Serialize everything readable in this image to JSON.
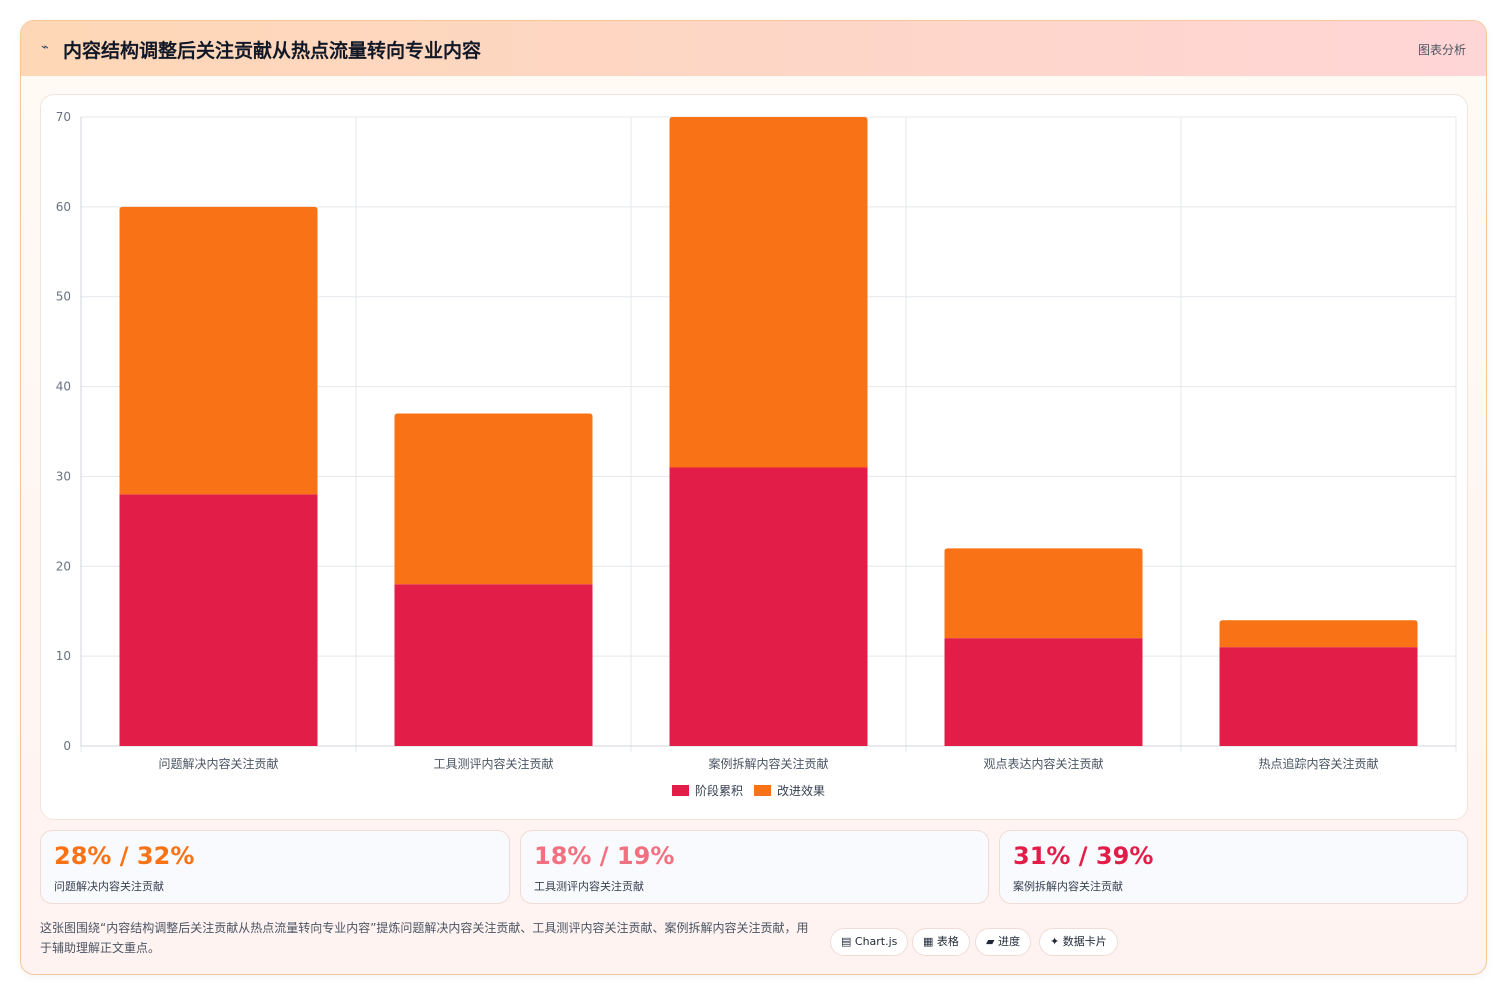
{
  "header": {
    "icon": "trend-icon",
    "title": "内容结构调整后关注贡献从热点流量转向专业内容",
    "action_label": "图表分析"
  },
  "chart_data": {
    "type": "bar",
    "stacked": true,
    "categories": [
      "问题解决内容关注贡献",
      "工具测评内容关注贡献",
      "案例拆解内容关注贡献",
      "观点表达内容关注贡献",
      "热点追踪内容关注贡献"
    ],
    "series": [
      {
        "name": "阶段累积",
        "color": "#e11d48",
        "values": [
          28,
          18,
          31,
          12,
          11
        ]
      },
      {
        "name": "改进效果",
        "color": "#f97316",
        "values": [
          32,
          19,
          39,
          10,
          3
        ]
      }
    ],
    "ylim": [
      0,
      70
    ],
    "yticks": [
      0,
      10,
      20,
      30,
      40,
      50,
      60,
      70
    ],
    "grid": true,
    "legend": "bottom"
  },
  "stats": [
    {
      "value": "28% / 32%",
      "label": "问题解决内容关注贡献",
      "color": "#f97316"
    },
    {
      "value": "18% / 19%",
      "label": "工具测评内容关注贡献",
      "color": "#f2707f"
    },
    {
      "value": "31% / 39%",
      "label": "案例拆解内容关注贡献",
      "color": "#e11d48"
    }
  ],
  "description": "这张图围绕“内容结构调整后关注贡献从热点流量转向专业内容”提炼问题解决内容关注贡献、工具测评内容关注贡献、案例拆解内容关注贡献，用于辅助理解正文重点。",
  "tags": [
    {
      "label": "▤ Chart.js",
      "icon": "chart-icon"
    },
    {
      "label": "▦ 表格",
      "icon": "table-icon"
    },
    {
      "label": "▰ 进度",
      "icon": "progress-icon"
    },
    {
      "label": "✦ 数据卡片",
      "icon": "sparkle-icon"
    }
  ]
}
